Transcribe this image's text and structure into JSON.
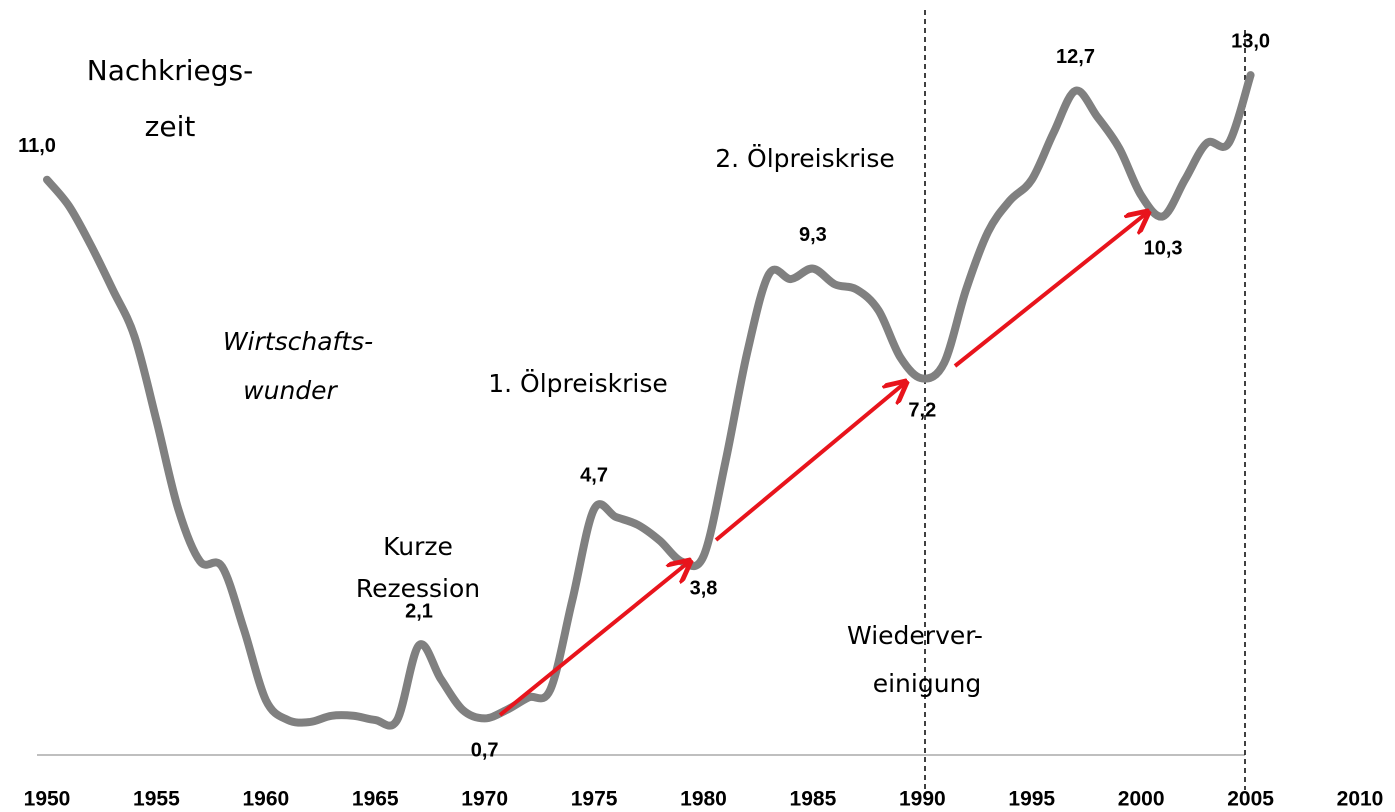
{
  "chart_data": {
    "type": "line",
    "x": [
      1950,
      1951,
      1952,
      1953,
      1954,
      1955,
      1956,
      1957,
      1958,
      1959,
      1960,
      1961,
      1962,
      1963,
      1964,
      1965,
      1966,
      1967,
      1968,
      1969,
      1970,
      1971,
      1972,
      1973,
      1974,
      1975,
      1976,
      1977,
      1978,
      1979,
      1980,
      1981,
      1982,
      1983,
      1984,
      1985,
      1986,
      1987,
      1988,
      1989,
      1990,
      1991,
      1992,
      1993,
      1994,
      1995,
      1996,
      1997,
      1998,
      1999,
      2000,
      2001,
      2002,
      2003,
      2004,
      2005
    ],
    "series": [
      {
        "color": "#808080",
        "values": [
          11.0,
          10.5,
          9.75,
          8.9,
          8.0,
          6.4,
          4.7,
          3.7,
          3.6,
          2.4,
          1.05,
          0.67,
          0.63,
          0.75,
          0.75,
          0.67,
          0.67,
          2.1,
          1.45,
          0.86,
          0.7,
          0.86,
          1.1,
          1.25,
          2.95,
          4.7,
          4.55,
          4.4,
          4.1,
          3.7,
          3.8,
          5.6,
          7.7,
          9.2,
          9.1,
          9.3,
          9.0,
          8.9,
          8.5,
          7.6,
          7.2,
          7.5,
          8.9,
          10.0,
          10.6,
          11.0,
          11.9,
          12.7,
          12.2,
          11.6,
          10.7,
          10.3,
          11.0,
          11.7,
          11.7,
          13.0
        ],
        "value_labels": [
          "11,0",
          null,
          null,
          null,
          null,
          null,
          null,
          null,
          null,
          null,
          null,
          null,
          null,
          null,
          null,
          null,
          null,
          "2,1",
          null,
          null,
          "0,7",
          null,
          null,
          null,
          null,
          "4,7",
          null,
          null,
          null,
          null,
          "3,8",
          null,
          null,
          null,
          null,
          "9,3",
          null,
          null,
          null,
          null,
          "7,2",
          null,
          null,
          null,
          null,
          null,
          null,
          "12,7",
          null,
          null,
          null,
          "10,3",
          null,
          null,
          null,
          "13,0"
        ]
      }
    ],
    "xlim": [
      1950,
      2010
    ],
    "xticks": [
      1950,
      1955,
      1960,
      1965,
      1970,
      1975,
      1980,
      1985,
      1990,
      1995,
      2000,
      2005,
      2010
    ],
    "ylim": [
      0,
      14.43
    ],
    "grid": false,
    "annotations": [
      "Nachkriegs-",
      "zeit",
      "Wirtschafts-",
      "wunder",
      "Kurze",
      "Rezession",
      "1. Ölpreiskrise",
      "2. Ölpreiskrise",
      "Wiederver-",
      "einigung"
    ]
  }
}
